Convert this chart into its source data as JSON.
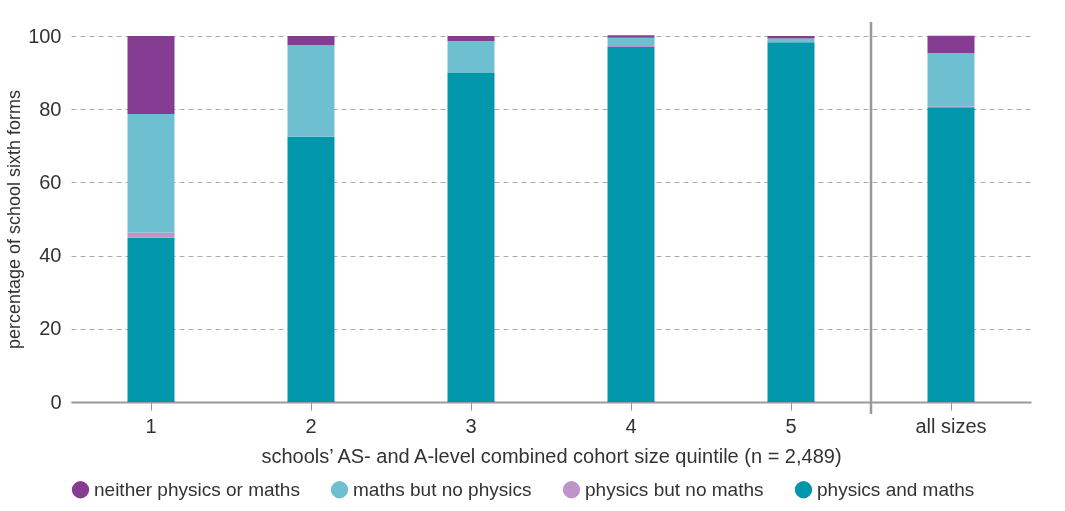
{
  "chart_data": {
    "type": "bar",
    "stacked": true,
    "xlabel": "schools’ AS- and A-level combined cohort size quintile (n = 2,489)",
    "ylabel": "percentage of school sixth forms",
    "categories": [
      "1",
      "2",
      "3",
      "4",
      "5",
      "all sizes"
    ],
    "series": [
      {
        "name": "physics and maths",
        "color": "#0097ac",
        "values": [
          44.9,
          72.5,
          89.9,
          97.0,
          98.3,
          80.5
        ]
      },
      {
        "name": "physics but no maths",
        "color": "#bf94c8",
        "values": [
          1.4,
          0.0,
          0.0,
          0.3,
          0.0,
          0.3
        ]
      },
      {
        "name": "maths but no physics",
        "color": "#6ec0d0",
        "values": [
          32.4,
          25.0,
          8.7,
          2.2,
          1.0,
          14.5
        ]
      },
      {
        "name": "neither physics or maths",
        "color": "#863c92",
        "values": [
          21.3,
          2.5,
          1.4,
          0.7,
          0.7,
          4.8
        ]
      }
    ],
    "ylim": [
      0,
      100
    ],
    "yticks": [
      0,
      20,
      40,
      60,
      80,
      100
    ],
    "ref_lines": [
      {
        "axis": "x",
        "value": "all sizes",
        "color": "#999999"
      }
    ],
    "grid": "y",
    "legend": "bottom"
  }
}
